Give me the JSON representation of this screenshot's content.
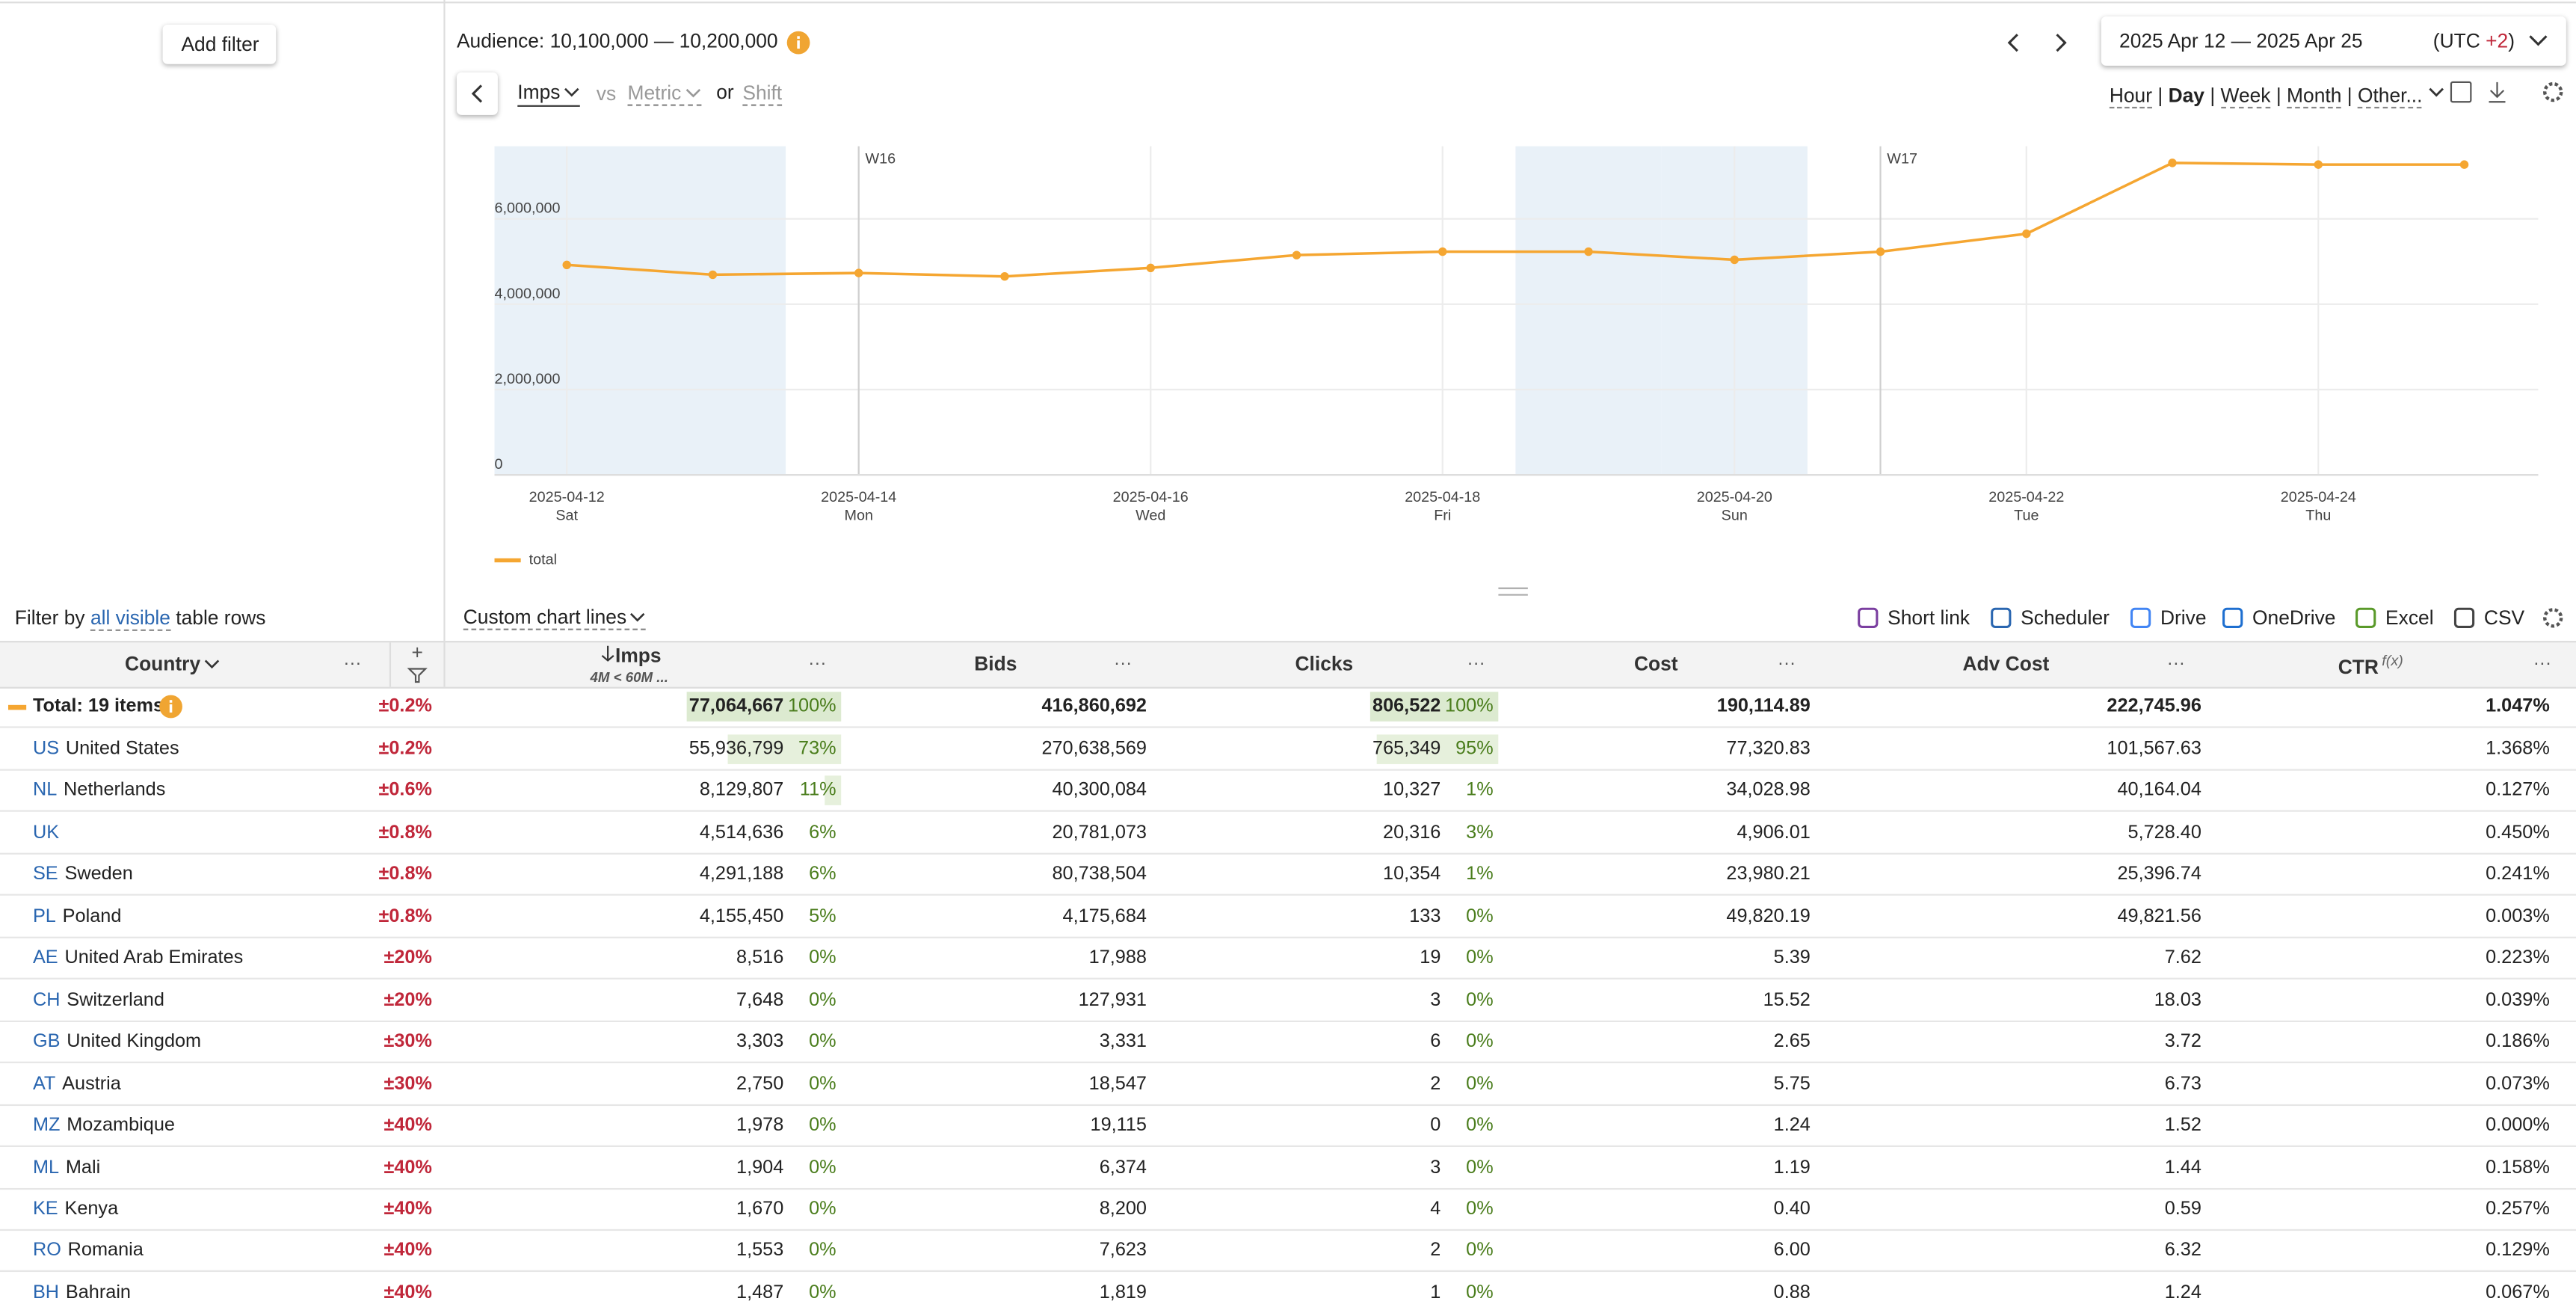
{
  "sidebar": {
    "add_filter": "Add filter",
    "filter_prefix": "Filter by",
    "filter_link": "all visible",
    "filter_suffix": "table rows"
  },
  "header": {
    "audience": "Audience: 10,100,000 — 10,200,000",
    "date_range": "2025 Apr 12 — 2025 Apr 25",
    "tz_prefix": "(UTC",
    "tz_offset": "+2",
    "tz_suffix": ")",
    "granularity": [
      "Hour",
      "Day",
      "Week",
      "Month",
      "Other..."
    ],
    "granularity_active": 1,
    "separator": "|"
  },
  "metric_bar": {
    "metric": "Imps",
    "vs": "vs",
    "metric2": "Metric",
    "or": "or",
    "shift": "Shift"
  },
  "chart_data": {
    "type": "line",
    "x": [
      "2025-04-12",
      "2025-04-13",
      "2025-04-14",
      "2025-04-15",
      "2025-04-16",
      "2025-04-17",
      "2025-04-18",
      "2025-04-19",
      "2025-04-20",
      "2025-04-21",
      "2025-04-22",
      "2025-04-23",
      "2025-04-24",
      "2025-04-25"
    ],
    "series": [
      {
        "name": "total",
        "color": "#f5a631",
        "values": [
          4920000,
          4690000,
          4730000,
          4650000,
          4850000,
          5150000,
          5230000,
          5230000,
          5040000,
          5230000,
          5650000,
          7310000,
          7270000,
          7270000
        ]
      }
    ],
    "ylim": [
      0,
      7700000
    ],
    "yticks": [
      0,
      {
        "value": 2000000,
        "label": "2,000,000"
      },
      {
        "value": 4000000,
        "label": "4,000,000"
      },
      {
        "value": 6000000,
        "label": "6,000,000"
      }
    ],
    "xticks": [
      {
        "date": "2025-04-12",
        "weekday": "Sat"
      },
      {
        "date": "2025-04-14",
        "weekday": "Mon"
      },
      {
        "date": "2025-04-16",
        "weekday": "Wed"
      },
      {
        "date": "2025-04-18",
        "weekday": "Fri"
      },
      {
        "date": "2025-04-20",
        "weekday": "Sun"
      },
      {
        "date": "2025-04-22",
        "weekday": "Tue"
      },
      {
        "date": "2025-04-24",
        "weekday": "Thu"
      }
    ],
    "week_markers": [
      {
        "date": "2025-04-14",
        "label": "W16"
      },
      {
        "date": "2025-04-21",
        "label": "W17"
      }
    ],
    "grid": true,
    "shade_weekends": true
  },
  "toolbar": {
    "custom_lines": "Custom chart lines",
    "actions": [
      "Short link",
      "Scheduler",
      "Drive",
      "OneDrive",
      "Excel",
      "CSV"
    ]
  },
  "table": {
    "columns": [
      "Country",
      "Imps",
      "Bids",
      "Clicks",
      "Cost",
      "Adv Cost",
      "CTR"
    ],
    "imps_range": "4M < 60M ...",
    "ctr_suffix": "f(x)",
    "more": "···",
    "plus": "+",
    "total": {
      "label": "Total: 19 items",
      "error": "±0.2%",
      "imps": "77,064,667",
      "imps_share": "100%",
      "bids": "416,860,692",
      "clicks": "806,522",
      "clicks_share": "100%",
      "cost": "190,114.89",
      "adv_cost": "222,745.96",
      "ctr": "1.047%"
    },
    "rows": [
      {
        "code": "US",
        "country": "United States",
        "error": "±0.2%",
        "imps": "55,936,799",
        "imps_share": "73%",
        "bids": "270,638,569",
        "clicks": "765,349",
        "clicks_share": "95%",
        "cost": "77,320.83",
        "adv_cost": "101,567.63",
        "ctr": "1.368%"
      },
      {
        "code": "NL",
        "country": "Netherlands",
        "error": "±0.6%",
        "imps": "8,129,807",
        "imps_share": "11%",
        "bids": "40,300,084",
        "clicks": "10,327",
        "clicks_share": "1%",
        "cost": "34,028.98",
        "adv_cost": "40,164.04",
        "ctr": "0.127%"
      },
      {
        "code": "UK",
        "error": "±0.8%",
        "imps": "4,514,636",
        "imps_share": "6%",
        "bids": "20,781,073",
        "clicks": "20,316",
        "clicks_share": "3%",
        "cost": "4,906.01",
        "adv_cost": "5,728.40",
        "ctr": "0.450%"
      },
      {
        "code": "SE",
        "country": "Sweden",
        "error": "±0.8%",
        "imps": "4,291,188",
        "imps_share": "6%",
        "bids": "80,738,504",
        "clicks": "10,354",
        "clicks_share": "1%",
        "cost": "23,980.21",
        "adv_cost": "25,396.74",
        "ctr": "0.241%"
      },
      {
        "code": "PL",
        "country": "Poland",
        "error": "±0.8%",
        "imps": "4,155,450",
        "imps_share": "5%",
        "bids": "4,175,684",
        "clicks": "133",
        "clicks_share": "0%",
        "cost": "49,820.19",
        "adv_cost": "49,821.56",
        "ctr": "0.003%"
      },
      {
        "code": "AE",
        "country": "United Arab Emirates",
        "error": "±20%",
        "imps": "8,516",
        "imps_share": "0%",
        "bids": "17,988",
        "clicks": "19",
        "clicks_share": "0%",
        "cost": "5.39",
        "adv_cost": "7.62",
        "ctr": "0.223%"
      },
      {
        "code": "CH",
        "country": "Switzerland",
        "error": "±20%",
        "imps": "7,648",
        "imps_share": "0%",
        "bids": "127,931",
        "clicks": "3",
        "clicks_share": "0%",
        "cost": "15.52",
        "adv_cost": "18.03",
        "ctr": "0.039%"
      },
      {
        "code": "GB",
        "country": "United Kingdom",
        "error": "±30%",
        "imps": "3,303",
        "imps_share": "0%",
        "bids": "3,331",
        "clicks": "6",
        "clicks_share": "0%",
        "cost": "2.65",
        "adv_cost": "3.72",
        "ctr": "0.186%"
      },
      {
        "code": "AT",
        "country": "Austria",
        "error": "±30%",
        "imps": "2,750",
        "imps_share": "0%",
        "bids": "18,547",
        "clicks": "2",
        "clicks_share": "0%",
        "cost": "5.75",
        "adv_cost": "6.73",
        "ctr": "0.073%"
      },
      {
        "code": "MZ",
        "country": "Mozambique",
        "error": "±40%",
        "imps": "1,978",
        "imps_share": "0%",
        "bids": "19,115",
        "clicks": "0",
        "clicks_share": "0%",
        "cost": "1.24",
        "adv_cost": "1.52",
        "ctr": "0.000%"
      },
      {
        "code": "ML",
        "country": "Mali",
        "error": "±40%",
        "imps": "1,904",
        "imps_share": "0%",
        "bids": "6,374",
        "clicks": "3",
        "clicks_share": "0%",
        "cost": "1.19",
        "adv_cost": "1.44",
        "ctr": "0.158%"
      },
      {
        "code": "KE",
        "country": "Kenya",
        "error": "±40%",
        "imps": "1,670",
        "imps_share": "0%",
        "bids": "8,200",
        "clicks": "4",
        "clicks_share": "0%",
        "cost": "0.40",
        "adv_cost": "0.59",
        "ctr": "0.257%"
      },
      {
        "code": "RO",
        "country": "Romania",
        "error": "±40%",
        "imps": "1,553",
        "imps_share": "0%",
        "bids": "7,623",
        "clicks": "2",
        "clicks_share": "0%",
        "cost": "6.00",
        "adv_cost": "6.32",
        "ctr": "0.129%"
      },
      {
        "code": "BH",
        "country": "Bahrain",
        "error": "±40%",
        "imps": "1,487",
        "imps_share": "0%",
        "bids": "1,819",
        "clicks": "1",
        "clicks_share": "0%",
        "cost": "0.88",
        "adv_cost": "1.24",
        "ctr": "0.067%"
      }
    ]
  }
}
